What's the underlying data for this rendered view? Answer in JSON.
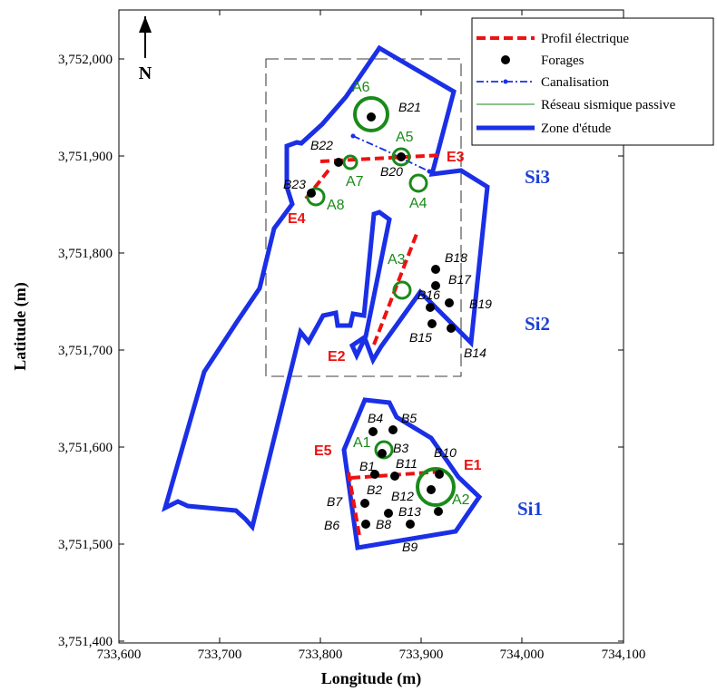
{
  "axes": {
    "xlabel": "Longitude (m)",
    "ylabel": "Latitude (m)",
    "x_ticks": [
      "733,600",
      "733,700",
      "733,800",
      "733,900",
      "734,000",
      "734,100"
    ],
    "y_ticks": [
      "3,751,400",
      "3,751,500",
      "3,751,600",
      "3,751,700",
      "3,751,800",
      "3,751,900",
      "3,752,000"
    ],
    "xlim": [
      733600,
      734100
    ],
    "ylim": [
      3751400,
      3752050
    ]
  },
  "north_arrow": {
    "label": "N",
    "icon": "north-arrow-icon"
  },
  "legend": {
    "items": [
      {
        "label": "Profil électrique",
        "icon": "red-dashed-line-icon"
      },
      {
        "label": "Forages",
        "icon": "black-dot-icon"
      },
      {
        "label": "Canalisation",
        "icon": "blue-dash-dot-line-icon"
      },
      {
        "label": "Réseau sismique passive",
        "icon": "green-line-icon"
      },
      {
        "label": "Zone d'étude",
        "icon": "thick-blue-line-icon"
      }
    ]
  },
  "sites": [
    "Si1",
    "Si2",
    "Si3"
  ],
  "profiles": [
    "E1",
    "E2",
    "E3",
    "E4",
    "E5"
  ],
  "stations": [
    "A1",
    "A2",
    "A3",
    "A4",
    "A5",
    "A6",
    "A7",
    "A8"
  ],
  "boreholes": [
    "B1",
    "B2",
    "B3",
    "B4",
    "B5",
    "B6",
    "B7",
    "B8",
    "B9",
    "B10",
    "B11",
    "B12",
    "B13",
    "B14",
    "B15",
    "B16",
    "B17",
    "B18",
    "B19",
    "B20",
    "B21",
    "B22",
    "B23"
  ],
  "colors": {
    "zone": "#1a2fe6",
    "profile": "#ee1111",
    "borehole": "#000000",
    "station": "#1a8a1a",
    "pipeline": "#1a2fe6"
  }
}
